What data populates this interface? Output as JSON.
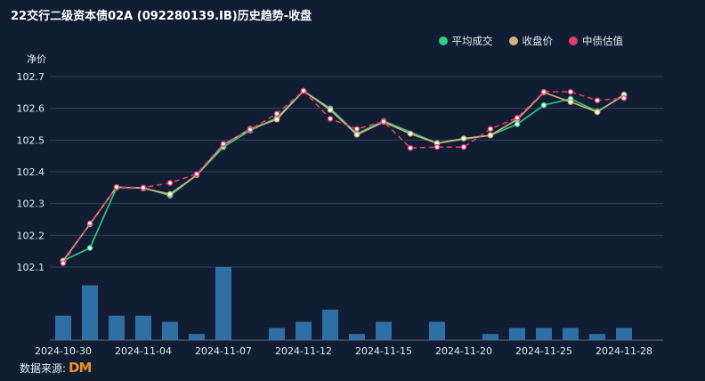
{
  "title": "22交行二级资本债02A (092280139.IB)历史趋势-收盘",
  "source_label": "数据来源:",
  "source_logo": "DM",
  "chart_data": {
    "type": "line",
    "ylabel": "净价",
    "ylim": [
      102.1,
      102.7
    ],
    "yticks": [
      "102.7",
      "102.6",
      "102.5",
      "102.4",
      "102.3",
      "102.2",
      "102.1"
    ],
    "grid": true,
    "legend_position": "top-right",
    "x": [
      "2024-10-30",
      "2024-10-31",
      "2024-11-01",
      "2024-11-04",
      "2024-11-05",
      "2024-11-06",
      "2024-11-07",
      "2024-11-08",
      "2024-11-11",
      "2024-11-12",
      "2024-11-13",
      "2024-11-14",
      "2024-11-15",
      "2024-11-18",
      "2024-11-19",
      "2024-11-20",
      "2024-11-21",
      "2024-11-22",
      "2024-11-25",
      "2024-11-26",
      "2024-11-27",
      "2024-11-28"
    ],
    "xtick_labels": [
      "2024-10-30",
      "2024-11-04",
      "2024-11-07",
      "2024-11-12",
      "2024-11-15",
      "2024-11-20",
      "2024-11-25",
      "2024-11-28"
    ],
    "xtick_indices": [
      0,
      3,
      6,
      9,
      12,
      15,
      18,
      21
    ],
    "series": [
      {
        "name": "平均成交",
        "color": "#2ecf83",
        "dash": false,
        "values": [
          102.12,
          102.16,
          102.35,
          102.35,
          102.325,
          102.39,
          102.478,
          102.53,
          102.57,
          102.655,
          102.6,
          102.52,
          102.56,
          null,
          102.49,
          null,
          102.515,
          102.55,
          102.61,
          102.63,
          102.59,
          102.64
        ]
      },
      {
        "name": "收盘价",
        "color": "#d4b27c",
        "dash": false,
        "values": [
          102.12,
          102.235,
          102.352,
          102.348,
          102.33,
          102.39,
          102.485,
          102.535,
          102.565,
          102.655,
          102.595,
          102.517,
          102.557,
          102.52,
          102.49,
          102.505,
          102.515,
          102.565,
          102.65,
          102.62,
          102.588,
          102.643
        ]
      },
      {
        "name": "中债估值",
        "color": "#e23c6e",
        "dash": true,
        "values": [
          102.112,
          102.238,
          102.352,
          102.35,
          102.365,
          102.393,
          102.488,
          102.533,
          102.583,
          102.655,
          102.567,
          102.535,
          102.558,
          102.475,
          102.478,
          102.478,
          102.535,
          102.57,
          102.652,
          102.652,
          102.625,
          102.632
        ]
      }
    ],
    "volume_color": "#2e6fa5",
    "volume": [
      4,
      9,
      4,
      4,
      3,
      1,
      12,
      0,
      2,
      3,
      5,
      1,
      3,
      0,
      3,
      0,
      1,
      2,
      2,
      2,
      1,
      2
    ]
  }
}
